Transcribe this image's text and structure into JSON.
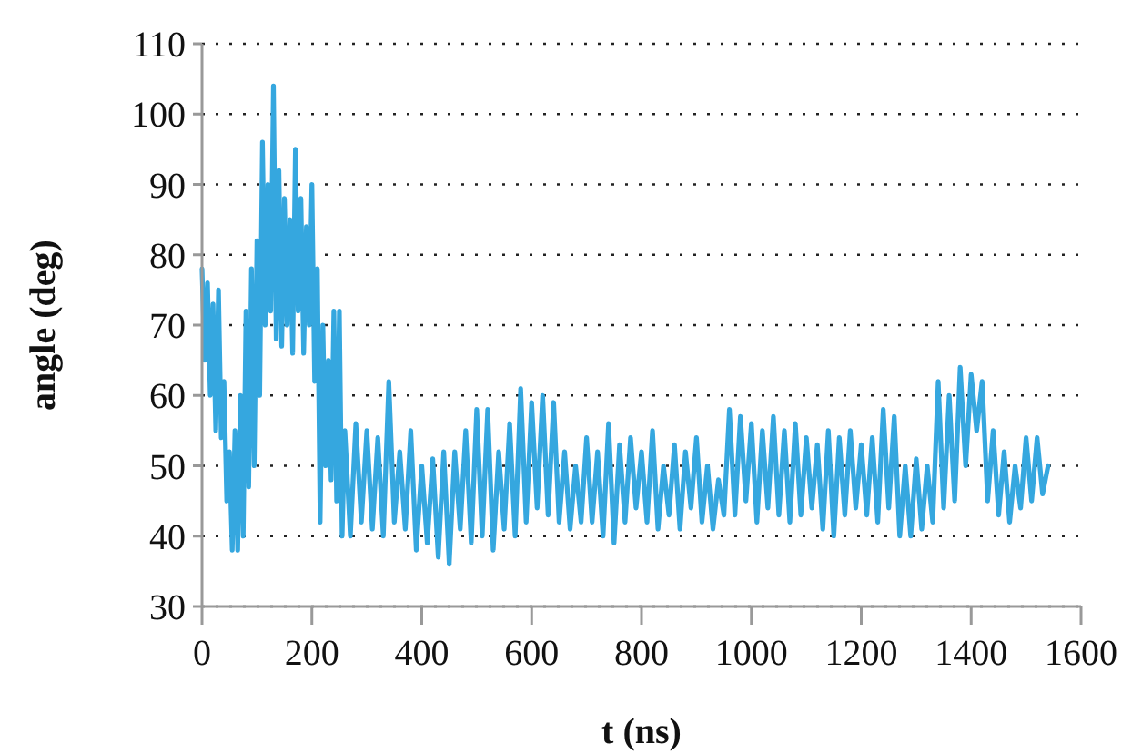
{
  "chart_data": {
    "type": "line",
    "xlabel": "t (ns)",
    "ylabel": "angle (deg)",
    "xlim": [
      0,
      1600
    ],
    "xticks": [
      0,
      200,
      400,
      600,
      800,
      1000,
      1200,
      1400,
      1600
    ],
    "ylim": [
      30,
      110
    ],
    "yticks": [
      30,
      40,
      50,
      60,
      70,
      80,
      90,
      100,
      110
    ],
    "grid": "y",
    "marker": "none",
    "line_style": "solid",
    "series": [
      {
        "color": "#35a7df",
        "x": [
          0,
          5,
          10,
          15,
          20,
          25,
          30,
          35,
          40,
          45,
          50,
          55,
          60,
          65,
          70,
          75,
          80,
          85,
          90,
          95,
          100,
          105,
          110,
          115,
          120,
          125,
          130,
          135,
          140,
          145,
          150,
          155,
          160,
          165,
          170,
          175,
          180,
          185,
          190,
          195,
          200,
          205,
          210,
          215,
          220,
          225,
          230,
          235,
          240,
          245,
          250,
          255,
          260,
          270,
          280,
          290,
          300,
          310,
          320,
          330,
          340,
          350,
          360,
          370,
          380,
          390,
          400,
          410,
          420,
          430,
          440,
          450,
          460,
          470,
          480,
          490,
          500,
          510,
          520,
          530,
          540,
          550,
          560,
          570,
          580,
          590,
          600,
          610,
          620,
          630,
          640,
          650,
          660,
          670,
          680,
          690,
          700,
          710,
          720,
          730,
          740,
          750,
          760,
          770,
          780,
          790,
          800,
          810,
          820,
          830,
          840,
          850,
          860,
          870,
          880,
          890,
          900,
          910,
          920,
          930,
          940,
          950,
          960,
          970,
          980,
          990,
          1000,
          1010,
          1020,
          1030,
          1040,
          1050,
          1060,
          1070,
          1080,
          1090,
          1100,
          1110,
          1120,
          1130,
          1140,
          1150,
          1160,
          1170,
          1180,
          1190,
          1200,
          1210,
          1220,
          1230,
          1240,
          1250,
          1260,
          1270,
          1280,
          1290,
          1300,
          1310,
          1320,
          1330,
          1340,
          1350,
          1360,
          1370,
          1380,
          1390,
          1400,
          1410,
          1420,
          1430,
          1440,
          1450,
          1460,
          1470,
          1480,
          1490,
          1500,
          1510,
          1520,
          1530,
          1540
        ],
        "values": [
          78,
          65,
          76,
          60,
          73,
          55,
          75,
          54,
          62,
          45,
          52,
          38,
          55,
          38,
          60,
          40,
          72,
          47,
          78,
          50,
          82,
          60,
          96,
          70,
          90,
          72,
          104,
          68,
          92,
          67,
          88,
          70,
          85,
          66,
          95,
          72,
          88,
          66,
          84,
          70,
          90,
          62,
          78,
          42,
          70,
          50,
          65,
          48,
          72,
          45,
          72,
          40,
          55,
          40,
          56,
          42,
          55,
          41,
          54,
          40,
          62,
          42,
          52,
          41,
          55,
          38,
          50,
          39,
          51,
          37,
          52,
          36,
          52,
          41,
          55,
          39,
          58,
          40,
          58,
          38,
          52,
          41,
          56,
          40,
          61,
          42,
          59,
          44,
          60,
          43,
          59,
          42,
          52,
          41,
          50,
          42,
          54,
          42,
          52,
          40,
          56,
          39,
          53,
          42,
          54,
          44,
          52,
          42,
          55,
          41,
          50,
          43,
          53,
          41,
          52,
          44,
          54,
          42,
          50,
          41,
          48,
          43,
          58,
          43,
          57,
          45,
          56,
          42,
          55,
          44,
          57,
          43,
          55,
          42,
          56,
          43,
          54,
          44,
          53,
          41,
          55,
          40,
          54,
          43,
          55,
          44,
          53,
          43,
          54,
          42,
          58,
          44,
          57,
          40,
          50,
          40,
          51,
          41,
          50,
          42,
          62,
          44,
          60,
          45,
          64,
          50,
          63,
          55,
          62,
          45,
          55,
          43,
          52,
          42,
          50,
          44,
          54,
          45,
          54,
          46,
          50
        ]
      }
    ]
  }
}
